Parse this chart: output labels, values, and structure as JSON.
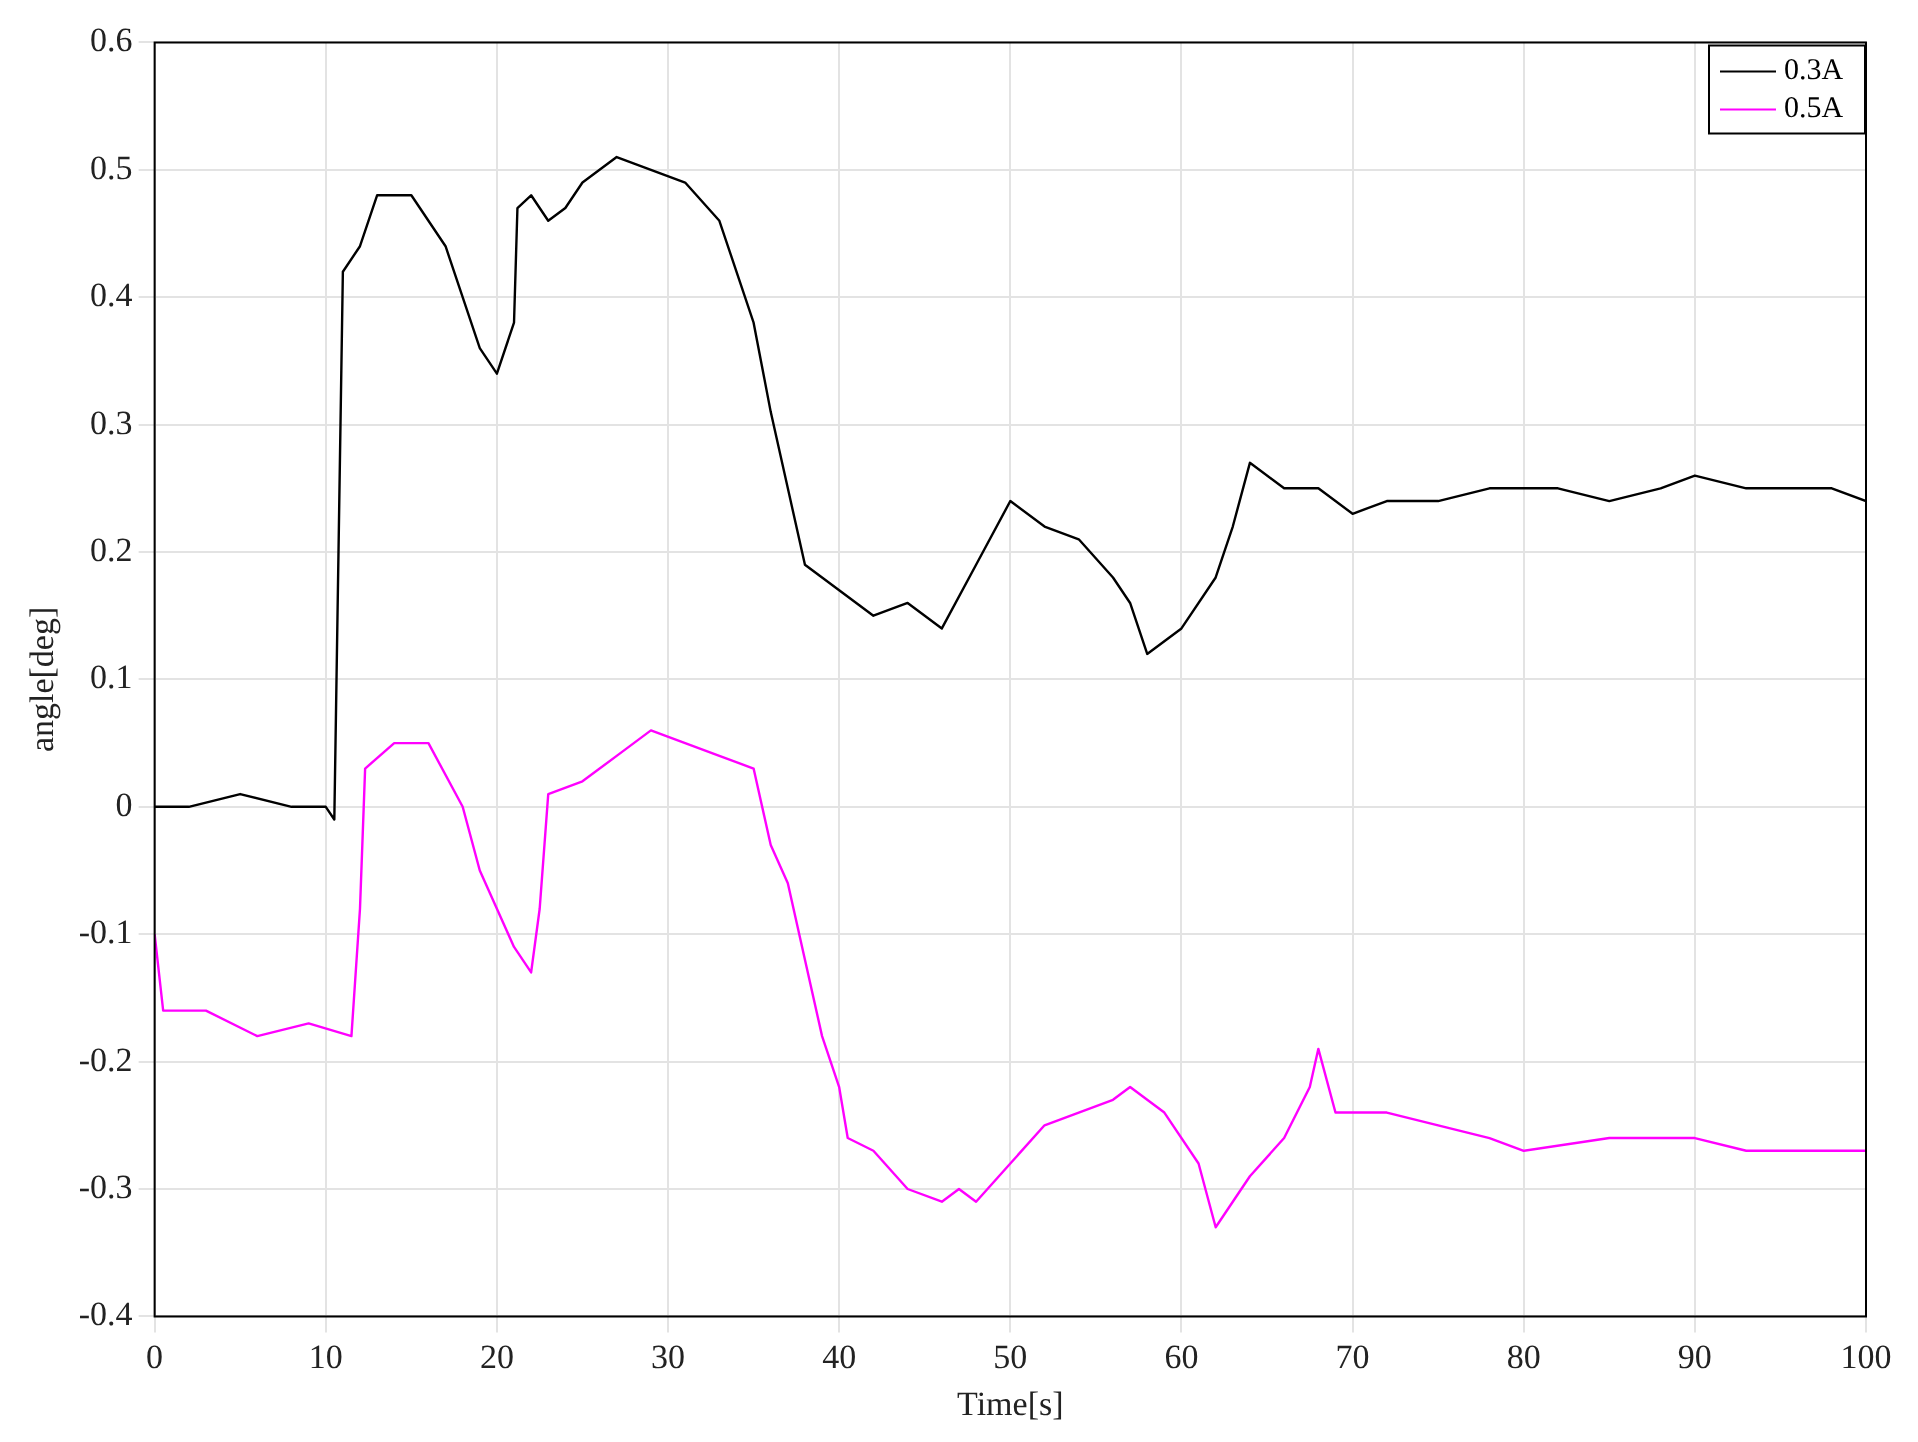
{
  "chart_data": {
    "type": "line",
    "xlabel": "Time[s]",
    "ylabel": "angle[deg]",
    "xlim": [
      0,
      100
    ],
    "xticks": [
      0,
      10,
      20,
      30,
      40,
      50,
      60,
      70,
      80,
      90,
      100
    ],
    "ylim": [
      -0.4,
      0.6
    ],
    "yticks": [
      -0.4,
      -0.3,
      -0.2,
      -0.1,
      0,
      0.1,
      0.2,
      0.3,
      0.4,
      0.5,
      0.6
    ],
    "grid": true,
    "legend": "top right",
    "marker": "none",
    "line_style": "solid",
    "series": [
      {
        "name": "0.3A",
        "color": "#000000",
        "x": [
          0,
          2,
          5,
          8,
          10,
          10.5,
          11,
          12,
          13,
          15,
          17,
          19,
          20,
          21,
          21.2,
          22,
          23,
          24,
          25,
          27,
          29,
          31,
          33,
          35,
          36,
          37,
          38,
          39,
          40,
          42,
          44,
          46,
          48,
          50,
          52,
          54,
          56,
          57,
          58,
          60,
          62,
          63,
          64,
          66,
          68,
          70,
          72,
          75,
          78,
          80,
          82,
          85,
          88,
          90,
          93,
          96,
          98,
          100
        ],
        "values": [
          0,
          0,
          0.01,
          0,
          0,
          -0.01,
          0.42,
          0.44,
          0.48,
          0.48,
          0.44,
          0.36,
          0.34,
          0.38,
          0.47,
          0.48,
          0.46,
          0.47,
          0.49,
          0.51,
          0.5,
          0.49,
          0.46,
          0.38,
          0.31,
          0.25,
          0.19,
          0.18,
          0.17,
          0.15,
          0.16,
          0.14,
          0.19,
          0.24,
          0.22,
          0.21,
          0.18,
          0.16,
          0.12,
          0.14,
          0.18,
          0.22,
          0.27,
          0.25,
          0.25,
          0.23,
          0.24,
          0.24,
          0.25,
          0.25,
          0.25,
          0.24,
          0.25,
          0.26,
          0.25,
          0.25,
          0.25,
          0.24
        ]
      },
      {
        "name": "0.5A",
        "color": "#ff00ff",
        "x": [
          0,
          0.5,
          3,
          6,
          9,
          11.5,
          12,
          12.3,
          14,
          16,
          18,
          19,
          20,
          21,
          22,
          22.5,
          23,
          25,
          27,
          29,
          31,
          33,
          35,
          36,
          37,
          38,
          39,
          40,
          40.5,
          42,
          44,
          46,
          47,
          48,
          50,
          52,
          54,
          56,
          57,
          59,
          61,
          62,
          63,
          64,
          66,
          67.5,
          68,
          69,
          72,
          75,
          78,
          80,
          85,
          90,
          93,
          96,
          100
        ],
        "values": [
          -0.1,
          -0.16,
          -0.16,
          -0.18,
          -0.17,
          -0.18,
          -0.08,
          0.03,
          0.05,
          0.05,
          0,
          -0.05,
          -0.08,
          -0.11,
          -0.13,
          -0.08,
          0.01,
          0.02,
          0.04,
          0.06,
          0.05,
          0.04,
          0.03,
          -0.03,
          -0.06,
          -0.12,
          -0.18,
          -0.22,
          -0.26,
          -0.27,
          -0.3,
          -0.31,
          -0.3,
          -0.31,
          -0.28,
          -0.25,
          -0.24,
          -0.23,
          -0.22,
          -0.24,
          -0.28,
          -0.33,
          -0.31,
          -0.29,
          -0.26,
          -0.22,
          -0.19,
          -0.24,
          -0.24,
          -0.25,
          -0.26,
          -0.27,
          -0.26,
          -0.26,
          -0.27,
          -0.27,
          -0.27
        ]
      }
    ]
  }
}
